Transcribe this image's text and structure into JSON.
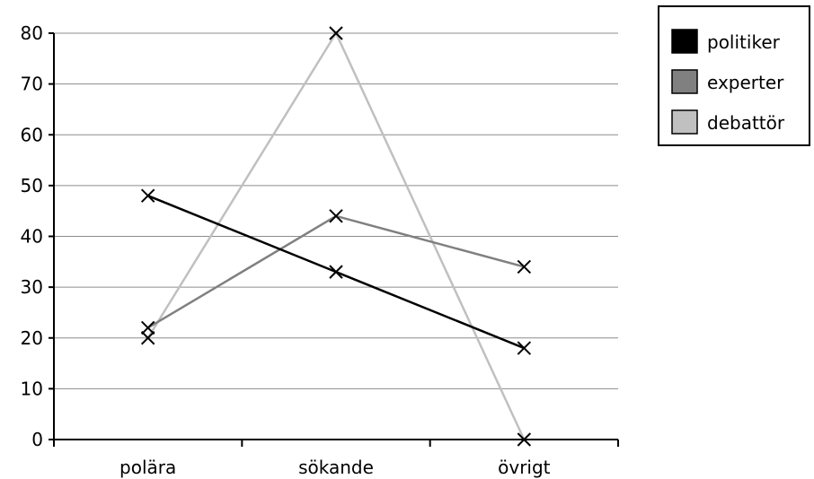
{
  "chart_data": {
    "type": "line",
    "categories": [
      "polära",
      "sökande",
      "övrigt"
    ],
    "ylim": [
      0,
      80
    ],
    "yticks": [
      "0",
      "10",
      "20",
      "30",
      "40",
      "50",
      "60",
      "70",
      "80"
    ],
    "grid": true,
    "legend_position": "top-right",
    "marker": "x",
    "series": [
      {
        "name": "politiker",
        "color": "#000000",
        "values": [
          48,
          33,
          18
        ]
      },
      {
        "name": "experter",
        "color": "#808080",
        "values": [
          22,
          44,
          34
        ]
      },
      {
        "name": "debattör",
        "color": "#c0c0c0",
        "values": [
          20,
          80,
          0
        ]
      }
    ]
  }
}
